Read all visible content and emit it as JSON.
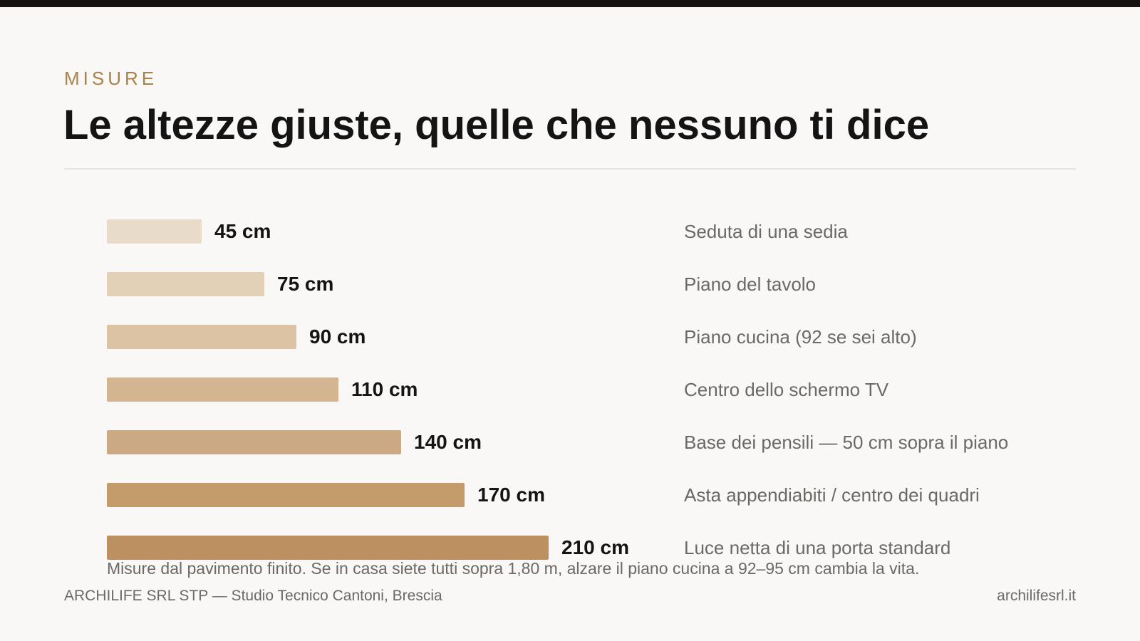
{
  "header": {
    "eyebrow": "MISURE",
    "title": "Le altezze giuste, quelle che nessuno ti dice"
  },
  "chart_data": {
    "type": "bar",
    "orientation": "horizontal",
    "title": "Le altezze giuste, quelle che nessuno ti dice",
    "unit": "cm",
    "categories": [
      "Seduta di una sedia",
      "Piano del tavolo",
      "Piano cucina (92 se sei alto)",
      "Centro dello schermo TV",
      "Base dei pensili — 50 cm sopra il piano",
      "Asta appendiabiti / centro dei quadri",
      "Luce netta di una porta standard"
    ],
    "values": [
      45,
      75,
      90,
      110,
      140,
      170,
      210
    ],
    "value_labels": [
      "45 cm",
      "75 cm",
      "90 cm",
      "110 cm",
      "140 cm",
      "170 cm",
      "210 cm"
    ],
    "colors": [
      "#e8dbca",
      "#e2d0b7",
      "#dbc3a4",
      "#d4b592",
      "#cca985",
      "#c49c6c",
      "#bc9060"
    ],
    "grid": false,
    "legend": "none"
  },
  "note": "Misure dal pavimento finito. Se in casa siete tutti sopra 1,80 m, alzare il piano cucina a 92–95 cm cambia la vita.",
  "footer": {
    "left": "ARCHILIFE SRL STP — Studio Tecnico Cantoni, Brescia",
    "right": "archilifesrl.it"
  }
}
